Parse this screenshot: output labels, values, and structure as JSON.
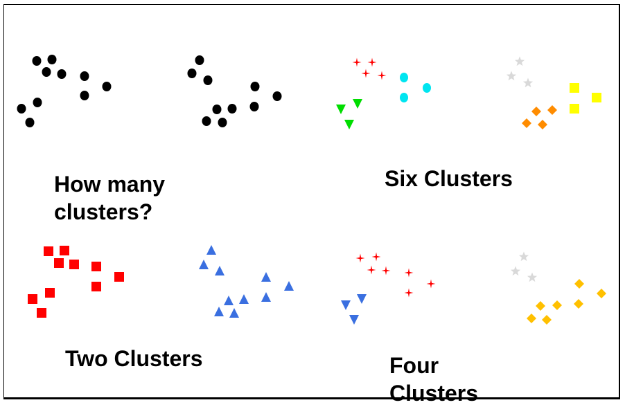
{
  "captions": {
    "question": "How many clusters?",
    "six": "Six Clusters",
    "two": "Two Clusters",
    "four": "Four Clusters"
  },
  "colors": {
    "unclustered": "#000000",
    "plus": "#ff0000",
    "circle": "#00e5f0",
    "down_triangle_green": "#00dd00",
    "star": "#d9d9d9",
    "diamond_orange": "#ff8c00",
    "square_yellow": "#ffff00",
    "square_red": "#ff0000",
    "up_triangle": "#3a6fe0",
    "down_triangle_blue": "#3a6fe0",
    "diamond_gold": "#ffc000"
  },
  "panels": [
    {
      "name": "unclustered-left",
      "groups": [
        {
          "marker": "ellipse",
          "color": "unclustered",
          "points": [
            [
              53,
              88
            ],
            [
              75,
              86
            ],
            [
              67,
              104
            ],
            [
              89,
              107
            ],
            [
              122,
              110
            ],
            [
              154,
              125
            ],
            [
              122,
              138
            ],
            [
              54,
              148
            ],
            [
              31,
              157
            ],
            [
              43,
              177
            ]
          ]
        }
      ]
    },
    {
      "name": "unclustered-right",
      "groups": [
        {
          "marker": "ellipse",
          "color": "unclustered",
          "points": [
            [
              288,
              87
            ],
            [
              277,
              106
            ],
            [
              300,
              116
            ],
            [
              368,
              125
            ],
            [
              400,
              139
            ],
            [
              367,
              154
            ],
            [
              335,
              157
            ],
            [
              313,
              158
            ],
            [
              298,
              175
            ],
            [
              321,
              177
            ]
          ]
        }
      ]
    },
    {
      "name": "six-clusters-left",
      "groups": [
        {
          "marker": "plus",
          "color": "plus",
          "points": [
            [
              515,
              90
            ],
            [
              537,
              90
            ],
            [
              528,
              106
            ],
            [
              551,
              109
            ]
          ]
        },
        {
          "marker": "circle",
          "color": "circle",
          "points": [
            [
              583,
              112
            ],
            [
              616,
              127
            ],
            [
              583,
              141
            ]
          ]
        },
        {
          "marker": "triangle-down",
          "color": "down_triangle_green",
          "points": [
            [
              516,
              149
            ],
            [
              492,
              157
            ],
            [
              504,
              179
            ]
          ]
        }
      ]
    },
    {
      "name": "six-clusters-right",
      "groups": [
        {
          "marker": "star",
          "color": "star",
          "points": [
            [
              750,
              89
            ],
            [
              738,
              110
            ],
            [
              762,
              120
            ]
          ]
        },
        {
          "marker": "square",
          "color": "square_yellow",
          "points": [
            [
              829,
              127
            ],
            [
              861,
              141
            ],
            [
              829,
              157
            ]
          ]
        },
        {
          "marker": "diamond",
          "color": "diamond_orange",
          "points": [
            [
              774,
              161
            ],
            [
              797,
              159
            ],
            [
              760,
              178
            ],
            [
              783,
              180
            ]
          ]
        }
      ]
    },
    {
      "name": "two-clusters-left",
      "groups": [
        {
          "marker": "square",
          "color": "square_red",
          "points": [
            [
              70,
              363
            ],
            [
              93,
              362
            ],
            [
              85,
              380
            ],
            [
              107,
              382
            ],
            [
              139,
              385
            ],
            [
              172,
              400
            ],
            [
              139,
              414
            ],
            [
              72,
              423
            ],
            [
              47,
              432
            ],
            [
              60,
              452
            ]
          ]
        }
      ]
    },
    {
      "name": "two-clusters-right",
      "groups": [
        {
          "marker": "triangle-up",
          "color": "up_triangle",
          "points": [
            [
              305,
              362
            ],
            [
              294,
              383
            ],
            [
              317,
              392
            ],
            [
              384,
              401
            ],
            [
              417,
              414
            ],
            [
              384,
              430
            ],
            [
              352,
              433
            ],
            [
              330,
              435
            ],
            [
              316,
              451
            ],
            [
              338,
              453
            ]
          ]
        }
      ]
    },
    {
      "name": "four-clusters-left",
      "groups": [
        {
          "marker": "plus",
          "color": "plus",
          "points": [
            [
              520,
              373
            ],
            [
              543,
              371
            ],
            [
              536,
              390
            ],
            [
              557,
              391
            ],
            [
              590,
              394
            ],
            [
              622,
              410
            ],
            [
              590,
              423
            ]
          ]
        },
        {
          "marker": "triangle-down",
          "color": "down_triangle_blue",
          "points": [
            [
              522,
              431
            ],
            [
              499,
              440
            ],
            [
              511,
              461
            ]
          ]
        }
      ]
    },
    {
      "name": "four-clusters-right",
      "groups": [
        {
          "marker": "star",
          "color": "star",
          "points": [
            [
              756,
              371
            ],
            [
              744,
              392
            ],
            [
              768,
              401
            ]
          ]
        },
        {
          "marker": "diamond",
          "color": "diamond_gold",
          "points": [
            [
              836,
              410
            ],
            [
              868,
              424
            ],
            [
              835,
              439
            ],
            [
              780,
              442
            ],
            [
              804,
              441
            ],
            [
              767,
              460
            ],
            [
              789,
              462
            ]
          ]
        }
      ]
    }
  ]
}
